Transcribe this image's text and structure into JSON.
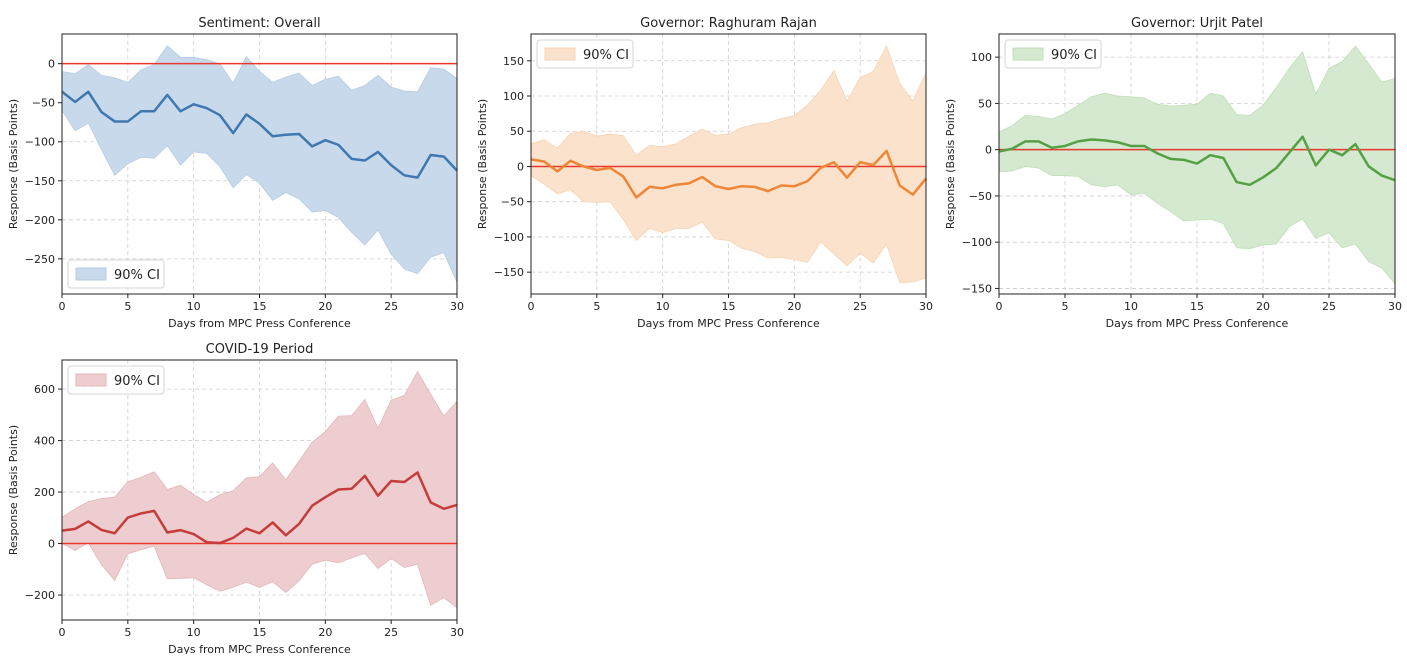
{
  "chart_data": [
    {
      "type": "line",
      "title": "Sentiment: Overall",
      "xlabel": "Days from MPC Press Conference",
      "ylabel": "Response (Basis Points)",
      "xlim": [
        0,
        30
      ],
      "ylim": [
        -295,
        38
      ],
      "xticks": [
        0,
        5,
        10,
        15,
        20,
        25,
        30
      ],
      "yticks": [
        -250,
        -200,
        -150,
        -100,
        -50,
        0
      ],
      "grid": true,
      "legend": {
        "label": "90% CI",
        "placement": "lower-left"
      },
      "colors": {
        "line": "#3f78b0",
        "fill": "#c9d9ec",
        "fill_edge": "#b5cbe4"
      },
      "mean": [
        -36,
        -49,
        -36,
        -62,
        -74,
        -74,
        -61,
        -61,
        -40,
        -61,
        -52,
        -57,
        -66,
        -89,
        -65,
        -77,
        -93,
        -91,
        -90,
        -106,
        -98,
        -104,
        -122,
        -124,
        -113,
        -130,
        -143,
        -146,
        -117,
        -119,
        -137
      ],
      "upper": [
        -10,
        -13,
        -1,
        -15,
        -18,
        -24,
        -8,
        -1,
        23,
        8,
        8,
        5,
        0,
        -25,
        9,
        -10,
        -24,
        -17,
        -12,
        -28,
        -20,
        -16,
        -34,
        -28,
        -15,
        -30,
        -35,
        -36,
        -5,
        -7,
        -19
      ],
      "lower": [
        -60,
        -86,
        -76,
        -110,
        -143,
        -128,
        -120,
        -121,
        -105,
        -130,
        -113,
        -115,
        -132,
        -159,
        -142,
        -153,
        -175,
        -165,
        -173,
        -190,
        -188,
        -197,
        -216,
        -232,
        -213,
        -244,
        -263,
        -269,
        -248,
        -242,
        -280
      ],
      "reference_line": 0
    },
    {
      "type": "line",
      "title": "Governor: Raghuram Rajan",
      "xlabel": "Days from MPC Press Conference",
      "ylabel": "Response (Basis Points)",
      "xlim": [
        0,
        30
      ],
      "ylim": [
        -181,
        188
      ],
      "xticks": [
        0,
        5,
        10,
        15,
        20,
        25,
        30
      ],
      "yticks": [
        -150,
        -100,
        -50,
        0,
        50,
        100,
        150
      ],
      "grid": true,
      "legend": {
        "label": "90% CI",
        "placement": "top-left"
      },
      "colors": {
        "line": "#ef8636",
        "fill": "#fbe2cc",
        "fill_edge": "#f8d3b3"
      },
      "mean": [
        10,
        7,
        -7,
        8,
        0,
        -5,
        -2,
        -14,
        -44,
        -29,
        -31,
        -26,
        -24,
        -15,
        -28,
        -32,
        -28,
        -29,
        -35,
        -27,
        -28,
        -21,
        -2,
        6,
        -16,
        6,
        2,
        22,
        -27,
        -40,
        -17
      ],
      "upper": [
        32,
        38,
        26,
        47,
        50,
        43,
        46,
        44,
        16,
        30,
        28,
        32,
        43,
        53,
        44,
        46,
        55,
        60,
        62,
        68,
        72,
        87,
        108,
        136,
        93,
        126,
        135,
        171,
        118,
        93,
        133
      ],
      "lower": [
        -13,
        -25,
        -39,
        -33,
        -50,
        -51,
        -50,
        -75,
        -105,
        -88,
        -94,
        -88,
        -88,
        -79,
        -103,
        -105,
        -116,
        -121,
        -130,
        -129,
        -132,
        -136,
        -107,
        -124,
        -141,
        -123,
        -137,
        -110,
        -165,
        -164,
        -158
      ],
      "reference_line": 0
    },
    {
      "type": "line",
      "title": "Governor: Urjit Patel",
      "xlabel": "Days from MPC Press Conference",
      "ylabel": "Response (Basis Points)",
      "xlim": [
        0,
        30
      ],
      "ylim": [
        -156,
        125
      ],
      "xticks": [
        0,
        5,
        10,
        15,
        20,
        25,
        30
      ],
      "yticks": [
        -150,
        -100,
        -50,
        0,
        50,
        100
      ],
      "grid": true,
      "legend": {
        "label": "90% CI",
        "placement": "top-left"
      },
      "colors": {
        "line": "#56a044",
        "fill": "#d4e9cf",
        "fill_edge": "#c0dfb9"
      },
      "mean": [
        -2,
        1,
        9,
        9,
        2,
        4,
        9,
        11,
        10,
        8,
        4,
        4,
        -4,
        -10,
        -11,
        -15,
        -6,
        -9,
        -35,
        -38,
        -30,
        -20,
        -3,
        14,
        -17,
        0,
        -6,
        6,
        -18,
        -28,
        -33
      ],
      "upper": [
        19,
        26,
        37,
        36,
        33,
        39,
        48,
        57,
        61,
        58,
        57,
        56,
        49,
        47,
        48,
        49,
        61,
        58,
        38,
        37,
        48,
        67,
        88,
        106,
        60,
        88,
        95,
        112,
        93,
        73,
        77
      ],
      "lower": [
        -24,
        -23,
        -18,
        -20,
        -28,
        -28,
        -29,
        -38,
        -40,
        -38,
        -49,
        -47,
        -58,
        -67,
        -77,
        -76,
        -75,
        -80,
        -106,
        -107,
        -103,
        -102,
        -83,
        -75,
        -96,
        -90,
        -106,
        -102,
        -121,
        -128,
        -145
      ],
      "reference_line": 0
    },
    {
      "type": "line",
      "title": "COVID-19 Period",
      "xlabel": "Days from MPC Press Conference",
      "ylabel": "Response (Basis Points)",
      "xlim": [
        0,
        30
      ],
      "ylim": [
        -297,
        713
      ],
      "xticks": [
        0,
        5,
        10,
        15,
        20,
        25,
        30
      ],
      "yticks": [
        -200,
        0,
        200,
        400,
        600
      ],
      "grid": true,
      "legend": {
        "label": "90% CI",
        "placement": "top-left"
      },
      "colors": {
        "line": "#c63c3a",
        "fill": "#eecdd0",
        "fill_edge": "#e4b6ba"
      },
      "mean": [
        50,
        57,
        86,
        53,
        40,
        101,
        117,
        127,
        43,
        52,
        37,
        5,
        2,
        22,
        58,
        40,
        82,
        32,
        76,
        147,
        180,
        210,
        213,
        263,
        186,
        243,
        239,
        276,
        160,
        135,
        150
      ],
      "upper": [
        102,
        135,
        163,
        175,
        180,
        240,
        257,
        279,
        210,
        226,
        190,
        160,
        190,
        205,
        255,
        260,
        313,
        248,
        320,
        393,
        435,
        495,
        497,
        560,
        448,
        557,
        575,
        668,
        580,
        495,
        553
      ],
      "lower": [
        0,
        -26,
        3,
        -82,
        -143,
        -40,
        -24,
        -10,
        -137,
        -135,
        -133,
        -160,
        -185,
        -170,
        -150,
        -170,
        -148,
        -190,
        -145,
        -80,
        -65,
        -75,
        -55,
        -38,
        -97,
        -58,
        -93,
        -80,
        -240,
        -210,
        -250
      ],
      "reference_line": 0
    }
  ],
  "reference_line_color": "#e8392b"
}
